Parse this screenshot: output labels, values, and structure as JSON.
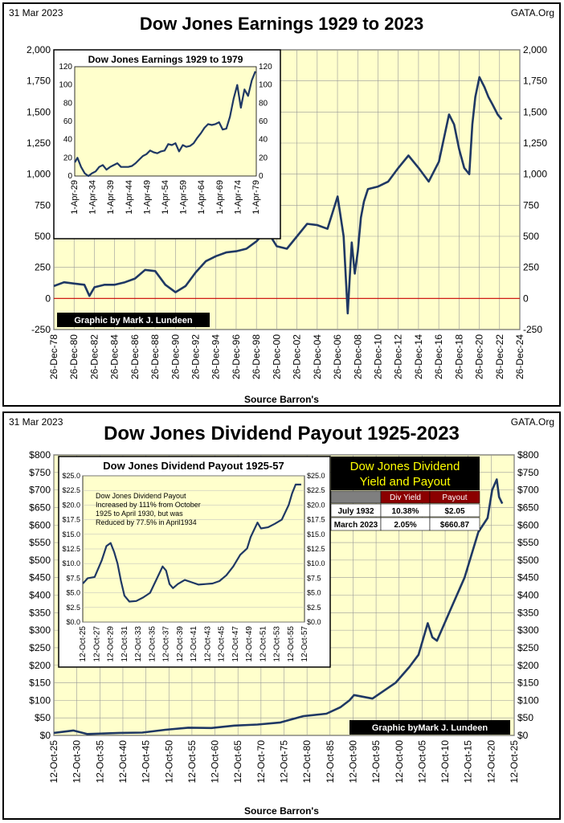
{
  "panel1": {
    "date": "31 Mar 2023",
    "site": "GATA.Org",
    "title": "Dow Jones Earnings 1929 to 2023",
    "source": "Source Barron's",
    "credit": "Graphic by Mark J. Lundeen"
  },
  "panel2": {
    "date": "31 Mar 2023",
    "site": "GATA.Org",
    "title": "Dow Jones Dividend Payout 1925-2023",
    "source": "Source Barron's",
    "credit": "Graphic byMark J. Lundeen",
    "inset_note": [
      "Dow Jones Dividend Payout",
      "Increased by  111% from October",
      "1925 to April 1930, but was",
      "Reduced by 77.5% in April1934"
    ],
    "table": {
      "title": [
        "Dow Jones Dividend",
        "Yield and Payout"
      ],
      "headers": [
        "",
        "Div Yield",
        "Payout"
      ],
      "rows": [
        [
          "July 1932",
          "10.38%",
          "$2.05"
        ],
        [
          "March 2023",
          "2.05%",
          "$660.87"
        ]
      ]
    }
  },
  "chart_data": [
    {
      "type": "line",
      "title": "Dow Jones Earnings 1929 to 2023",
      "xlabel": "Source Barron's",
      "ylim": [
        -250,
        2000
      ],
      "yticks": [
        "-250",
        "0",
        "250",
        "500",
        "750",
        "1,000",
        "1,250",
        "1,500",
        "1,750",
        "2,000"
      ],
      "xticks": [
        "26-Dec-78",
        "26-Dec-80",
        "26-Dec-82",
        "26-Dec-84",
        "26-Dec-86",
        "26-Dec-88",
        "26-Dec-90",
        "26-Dec-92",
        "26-Dec-94",
        "26-Dec-96",
        "26-Dec-98",
        "26-Dec-00",
        "26-Dec-02",
        "26-Dec-04",
        "26-Dec-06",
        "26-Dec-08",
        "26-Dec-10",
        "26-Dec-12",
        "26-Dec-14",
        "26-Dec-16",
        "26-Dec-18",
        "26-Dec-20",
        "26-Dec-22",
        "26-Dec-24"
      ],
      "grid": true,
      "series": [
        {
          "x": [
            1979,
            1980,
            1981,
            1982,
            1982.5,
            1983,
            1984,
            1985,
            1986,
            1987,
            1988,
            1989,
            1990,
            1991,
            1992,
            1993,
            1994,
            1995,
            1996,
            1997,
            1998,
            1999,
            2000,
            2001,
            2002,
            2003,
            2004,
            2005,
            2006,
            2007,
            2007.6,
            2008,
            2008.4,
            2008.7,
            2009,
            2009.3,
            2009.6,
            2010,
            2011,
            2012,
            2013,
            2014,
            2015,
            2016,
            2017,
            2018,
            2018.5,
            2019,
            2019.5,
            2020,
            2020.3,
            2020.6,
            2021,
            2021.5,
            2021.9,
            2022.3,
            2022.8,
            2023.2
          ],
          "y": [
            100,
            130,
            120,
            110,
            20,
            90,
            110,
            110,
            130,
            160,
            230,
            220,
            110,
            50,
            100,
            210,
            300,
            340,
            370,
            380,
            400,
            460,
            550,
            420,
            400,
            500,
            600,
            590,
            560,
            820,
            500,
            -120,
            450,
            200,
            380,
            650,
            780,
            880,
            900,
            940,
            1050,
            1150,
            1050,
            940,
            1100,
            1480,
            1400,
            1200,
            1050,
            1000,
            1400,
            1620,
            1780,
            1700,
            1620,
            1560,
            1480,
            1440
          ]
        }
      ]
    },
    {
      "type": "line",
      "title": "Dow Jones Earnings 1929 to 1979",
      "ylim": [
        0,
        120
      ],
      "yticks": [
        "0",
        "20",
        "40",
        "60",
        "80",
        "100",
        "120"
      ],
      "xticks": [
        "1-Apr-29",
        "1-Apr-34",
        "1-Apr-39",
        "1-Apr-44",
        "1-Apr-49",
        "1-Apr-54",
        "1-Apr-59",
        "1-Apr-64",
        "1-Apr-69",
        "1-Apr-74",
        "1-Apr-79"
      ],
      "series": [
        {
          "x": [
            1929.3,
            1930,
            1931,
            1932,
            1933,
            1934,
            1935,
            1936,
            1937,
            1938,
            1939,
            1940,
            1941,
            1942,
            1943,
            1944,
            1945,
            1946,
            1947,
            1948,
            1949,
            1950,
            1951,
            1952,
            1953,
            1954,
            1955,
            1956,
            1957,
            1958,
            1959,
            1960,
            1961,
            1962,
            1963,
            1964,
            1965,
            1966,
            1967,
            1968,
            1969,
            1970,
            1971,
            1972,
            1973,
            1974,
            1975,
            1976,
            1977,
            1978,
            1979
          ],
          "y": [
            15,
            20,
            10,
            3,
            0,
            3,
            5,
            10,
            12,
            7,
            10,
            12,
            14,
            10,
            10,
            10,
            11,
            14,
            18,
            22,
            24,
            28,
            26,
            25,
            27,
            28,
            35,
            34,
            36,
            27,
            34,
            32,
            33,
            36,
            42,
            47,
            53,
            57,
            56,
            57,
            59,
            51,
            52,
            65,
            85,
            100,
            75,
            95,
            88,
            105,
            115
          ]
        }
      ]
    },
    {
      "type": "line",
      "title": "Dow Jones Dividend Payout 1925-2023",
      "xlabel": "Source Barron's",
      "ylim": [
        0,
        800
      ],
      "yticks": [
        "$0",
        "$50",
        "$100",
        "$150",
        "$200",
        "$250",
        "$300",
        "$350",
        "$400",
        "$450",
        "$500",
        "$550",
        "$600",
        "$650",
        "$700",
        "$750",
        "$800"
      ],
      "xticks": [
        "12-Oct-25",
        "12-Oct-30",
        "12-Oct-35",
        "12-Oct-40",
        "12-Oct-45",
        "12-Oct-50",
        "12-Oct-55",
        "12-Oct-60",
        "12-Oct-65",
        "12-Oct-70",
        "12-Oct-75",
        "12-Oct-80",
        "12-Oct-85",
        "12-Oct-90",
        "12-Oct-95",
        "12-Oct-00",
        "12-Oct-05",
        "12-Oct-10",
        "12-Oct-15",
        "12-Oct-20",
        "12-Oct-25"
      ],
      "grid": true,
      "series": [
        {
          "x": [
            1925.8,
            1930,
            1933,
            1940,
            1945,
            1950,
            1955,
            1960,
            1965,
            1970,
            1975,
            1980,
            1985,
            1988,
            1990,
            1991,
            1995,
            2000,
            2003,
            2005,
            2007,
            2008,
            2009,
            2010,
            2012,
            2015,
            2018,
            2020,
            2021,
            2022,
            2022.5,
            2023.2
          ],
          "y": [
            7,
            14,
            4,
            7,
            8,
            16,
            22,
            21,
            28,
            31,
            37,
            55,
            62,
            80,
            100,
            115,
            105,
            150,
            195,
            230,
            320,
            280,
            270,
            300,
            360,
            450,
            580,
            620,
            700,
            730,
            680,
            661
          ]
        }
      ]
    },
    {
      "type": "line",
      "title": "Dow Jones Dividend Payout 1925-57",
      "ylim": [
        0,
        25
      ],
      "yticks": [
        "$0.0",
        "$2.5",
        "$5.0",
        "$7.5",
        "$10.0",
        "$12.5",
        "$15.0",
        "$17.5",
        "$20.0",
        "$22.5",
        "$25.0"
      ],
      "xticks": [
        "12-Oct-25",
        "12-Oct-27",
        "12-Oct-29",
        "12-Oct-31",
        "12-Oct-33",
        "12-Oct-35",
        "12-Oct-37",
        "12-Oct-39",
        "12-Oct-41",
        "12-Oct-43",
        "12-Oct-45",
        "12-Oct-47",
        "12-Oct-49",
        "12-Oct-51",
        "12-Oct-53",
        "12-Oct-55",
        "12-Oct-57"
      ],
      "series": [
        {
          "x": [
            1925.8,
            1926.5,
            1927.5,
            1928.5,
            1929.2,
            1929.8,
            1930.3,
            1930.8,
            1931.3,
            1931.8,
            1932.5,
            1933.5,
            1934.5,
            1935.5,
            1936.5,
            1937.3,
            1937.8,
            1938.3,
            1938.8,
            1939.5,
            1940.5,
            1941.5,
            1942.5,
            1943.5,
            1944.5,
            1945.5,
            1946.5,
            1947.5,
            1948.5,
            1949.5,
            1950,
            1951,
            1951.5,
            1952.5,
            1953.5,
            1954.5,
            1955.5,
            1956,
            1956.5,
            1957.3
          ],
          "y": [
            6.6,
            7.5,
            7.7,
            10.5,
            13,
            13.5,
            12,
            10,
            7,
            4.5,
            3.5,
            3.6,
            4.2,
            5,
            7.5,
            9.5,
            8.8,
            6.5,
            5.8,
            6.5,
            7.2,
            6.8,
            6.4,
            6.5,
            6.6,
            7,
            8,
            9.5,
            11.5,
            12.6,
            14.5,
            17,
            16,
            16.2,
            16.8,
            17.5,
            20,
            22,
            23.5,
            23.5
          ]
        }
      ]
    }
  ]
}
